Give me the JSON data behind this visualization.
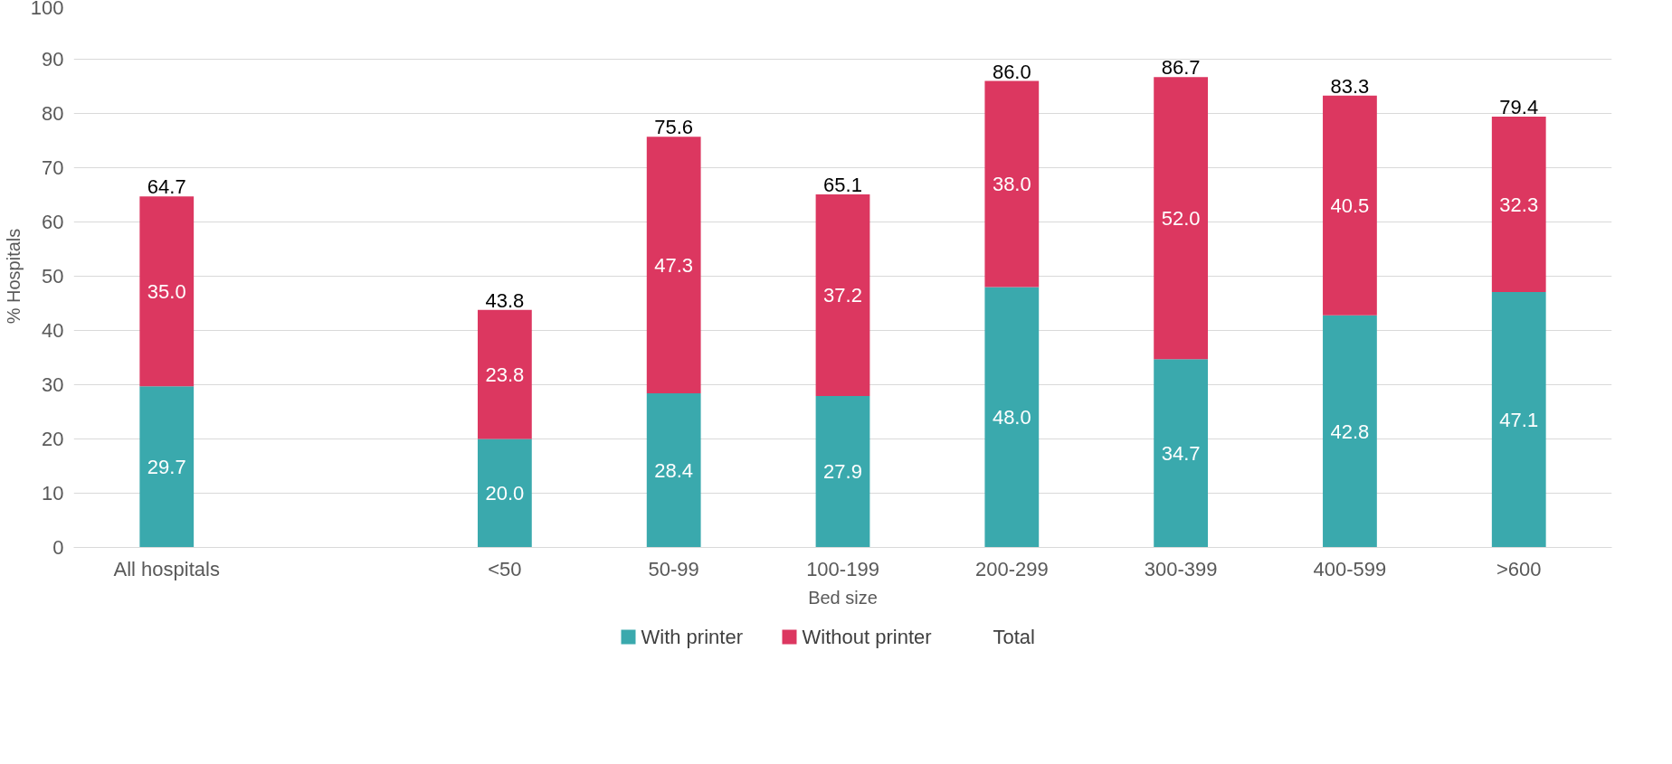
{
  "chart_data": {
    "type": "bar",
    "stacked": true,
    "xlabel": "Bed size",
    "ylabel": "% Hospitals",
    "categories": [
      "All hospitals",
      null,
      "<50",
      "50-99",
      "100-199",
      "200-299",
      "300-399",
      "400-599",
      ">600"
    ],
    "series": [
      {
        "name": "With printer",
        "color": "#3aa9ad",
        "values": [
          29.7,
          null,
          20.0,
          28.4,
          27.9,
          48.0,
          34.7,
          42.8,
          47.1
        ],
        "value_labels": [
          "29.7",
          null,
          "20.0",
          "28.4",
          "27.9",
          "48.0",
          "34.7",
          "42.8",
          "47.1"
        ]
      },
      {
        "name": "Without printer",
        "color": "#dc3760",
        "values": [
          35.0,
          null,
          23.8,
          47.3,
          37.2,
          38.0,
          52.0,
          40.5,
          32.3
        ],
        "value_labels": [
          "35.0",
          null,
          "23.8",
          "47.3",
          "37.2",
          "38.0",
          "52.0",
          "40.5",
          "32.3"
        ]
      }
    ],
    "totals": [
      "64.7",
      null,
      "43.8",
      "75.6",
      "65.1",
      "86.0",
      "86.7",
      "83.3",
      "79.4"
    ],
    "ylim": [
      0,
      100
    ],
    "yticks": [
      0,
      10,
      20,
      30,
      40,
      50,
      60,
      70,
      80,
      90,
      100
    ],
    "grid": "y",
    "legend": "bottom",
    "annotations": [
      "Total"
    ]
  }
}
